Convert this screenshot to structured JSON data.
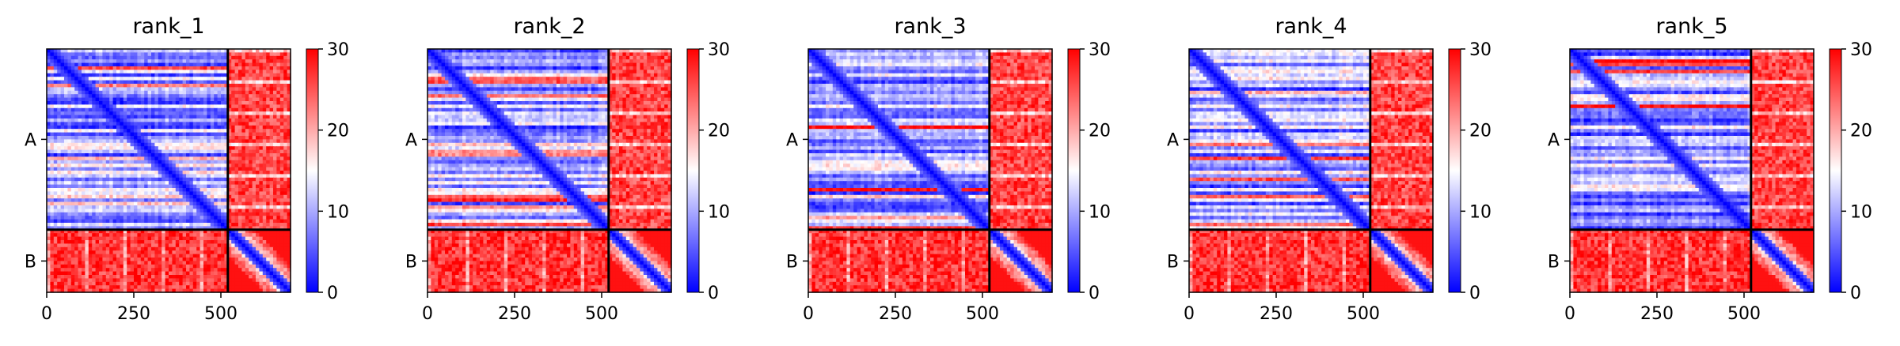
{
  "figure": {
    "background": "#ffffff"
  },
  "colormap": {
    "low": "#0000ff",
    "mid": "#ffffff",
    "high": "#ff0000",
    "min": 0,
    "max": 30
  },
  "chart_data": [
    {
      "type": "heatmap",
      "title": "rank_1",
      "xticks": [
        0,
        250,
        500
      ],
      "ylabels": [
        "A",
        "B"
      ],
      "chains": [
        {
          "name": "A",
          "start": 0,
          "end": 520
        },
        {
          "name": "B",
          "start": 520,
          "end": 700
        }
      ],
      "xlim": [
        0,
        700
      ],
      "colorbar": {
        "min": 0,
        "max": 30,
        "ticks": [
          0,
          10,
          20,
          30
        ]
      }
    },
    {
      "type": "heatmap",
      "title": "rank_2",
      "xticks": [
        0,
        250,
        500
      ],
      "ylabels": [
        "A",
        "B"
      ],
      "chains": [
        {
          "name": "A",
          "start": 0,
          "end": 520
        },
        {
          "name": "B",
          "start": 520,
          "end": 700
        }
      ],
      "xlim": [
        0,
        700
      ],
      "colorbar": {
        "min": 0,
        "max": 30,
        "ticks": [
          0,
          10,
          20,
          30
        ]
      }
    },
    {
      "type": "heatmap",
      "title": "rank_3",
      "xticks": [
        0,
        250,
        500
      ],
      "ylabels": [
        "A",
        "B"
      ],
      "chains": [
        {
          "name": "A",
          "start": 0,
          "end": 520
        },
        {
          "name": "B",
          "start": 520,
          "end": 700
        }
      ],
      "xlim": [
        0,
        700
      ],
      "colorbar": {
        "min": 0,
        "max": 30,
        "ticks": [
          0,
          10,
          20,
          30
        ]
      }
    },
    {
      "type": "heatmap",
      "title": "rank_4",
      "xticks": [
        0,
        250,
        500
      ],
      "ylabels": [
        "A",
        "B"
      ],
      "chains": [
        {
          "name": "A",
          "start": 0,
          "end": 520
        },
        {
          "name": "B",
          "start": 520,
          "end": 700
        }
      ],
      "xlim": [
        0,
        700
      ],
      "colorbar": {
        "min": 0,
        "max": 30,
        "ticks": [
          0,
          10,
          20,
          30
        ]
      }
    },
    {
      "type": "heatmap",
      "title": "rank_5",
      "xticks": [
        0,
        250,
        500
      ],
      "ylabels": [
        "A",
        "B"
      ],
      "chains": [
        {
          "name": "A",
          "start": 0,
          "end": 520
        },
        {
          "name": "B",
          "start": 520,
          "end": 700
        }
      ],
      "xlim": [
        0,
        700
      ],
      "colorbar": {
        "min": 0,
        "max": 30,
        "ticks": [
          0,
          10,
          20,
          30
        ]
      }
    }
  ]
}
